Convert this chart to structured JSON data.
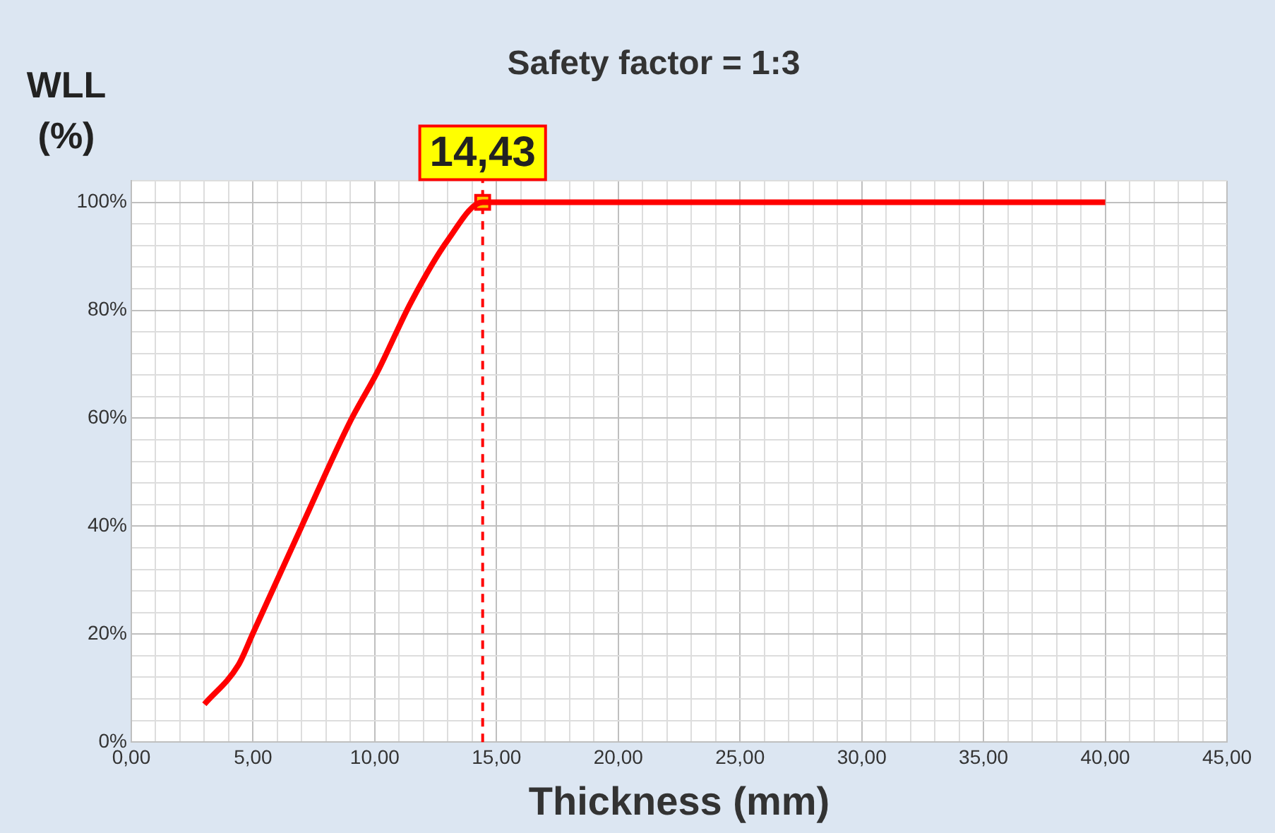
{
  "chart_data": {
    "type": "line",
    "title": "Safety factor = 1:3",
    "xlabel": "Thickness (mm)",
    "ylabel": "WLL (%)",
    "series": [
      {
        "color": "#ff0000",
        "x": [
          3,
          4.4,
          5,
          7,
          9,
          10.1,
          11.5,
          13,
          14.43,
          40
        ],
        "values": [
          7,
          14.3,
          20.2,
          40,
          59.5,
          68.5,
          81.6,
          93,
          100,
          100
        ],
        "marker": "none",
        "line_style": "solid"
      },
      {
        "type": "scatter",
        "color": "#ffc000",
        "x": [
          14.43
        ],
        "values": [
          100
        ],
        "marker": "square"
      }
    ],
    "xlim": [
      0,
      45
    ],
    "xticks": [
      {
        "value": 0,
        "label": "0,00"
      },
      {
        "value": 1,
        "label": null
      },
      {
        "value": 2,
        "label": null
      },
      {
        "value": 3,
        "label": null
      },
      {
        "value": 4,
        "label": null
      },
      {
        "value": 5,
        "label": "5,00"
      },
      {
        "value": 6,
        "label": null
      },
      {
        "value": 7,
        "label": null
      },
      {
        "value": 8,
        "label": null
      },
      {
        "value": 9,
        "label": null
      },
      {
        "value": 10,
        "label": "10,00"
      },
      {
        "value": 11,
        "label": null
      },
      {
        "value": 12,
        "label": null
      },
      {
        "value": 13,
        "label": null
      },
      {
        "value": 14,
        "label": null
      },
      {
        "value": 15,
        "label": "15,00"
      },
      {
        "value": 16,
        "label": null
      },
      {
        "value": 17,
        "label": null
      },
      {
        "value": 18,
        "label": null
      },
      {
        "value": 19,
        "label": null
      },
      {
        "value": 20,
        "label": "20,00"
      },
      {
        "value": 21,
        "label": null
      },
      {
        "value": 22,
        "label": null
      },
      {
        "value": 23,
        "label": null
      },
      {
        "value": 24,
        "label": null
      },
      {
        "value": 25,
        "label": "25,00"
      },
      {
        "value": 26,
        "label": null
      },
      {
        "value": 27,
        "label": null
      },
      {
        "value": 28,
        "label": null
      },
      {
        "value": 29,
        "label": null
      },
      {
        "value": 30,
        "label": "30,00"
      },
      {
        "value": 31,
        "label": null
      },
      {
        "value": 32,
        "label": null
      },
      {
        "value": 33,
        "label": null
      },
      {
        "value": 34,
        "label": null
      },
      {
        "value": 35,
        "label": "35,00"
      },
      {
        "value": 36,
        "label": null
      },
      {
        "value": 37,
        "label": null
      },
      {
        "value": 38,
        "label": null
      },
      {
        "value": 39,
        "label": null
      },
      {
        "value": 40,
        "label": "40,00"
      },
      {
        "value": 41,
        "label": null
      },
      {
        "value": 42,
        "label": null
      },
      {
        "value": 43,
        "label": null
      },
      {
        "value": 44,
        "label": null
      },
      {
        "value": 45,
        "label": "45,00"
      }
    ],
    "ylim": [
      0,
      104
    ],
    "yticks": [
      {
        "value": 0,
        "label": "0%"
      },
      {
        "value": 4,
        "label": null
      },
      {
        "value": 8,
        "label": null
      },
      {
        "value": 12,
        "label": null
      },
      {
        "value": 16,
        "label": null
      },
      {
        "value": 20,
        "label": "20%"
      },
      {
        "value": 24,
        "label": null
      },
      {
        "value": 28,
        "label": null
      },
      {
        "value": 32,
        "label": null
      },
      {
        "value": 36,
        "label": null
      },
      {
        "value": 40,
        "label": "40%"
      },
      {
        "value": 44,
        "label": null
      },
      {
        "value": 48,
        "label": null
      },
      {
        "value": 52,
        "label": null
      },
      {
        "value": 56,
        "label": null
      },
      {
        "value": 60,
        "label": "60%"
      },
      {
        "value": 64,
        "label": null
      },
      {
        "value": 68,
        "label": null
      },
      {
        "value": 72,
        "label": null
      },
      {
        "value": 76,
        "label": null
      },
      {
        "value": 80,
        "label": "80%"
      },
      {
        "value": 84,
        "label": null
      },
      {
        "value": 88,
        "label": null
      },
      {
        "value": 92,
        "label": null
      },
      {
        "value": 96,
        "label": null
      },
      {
        "value": 100,
        "label": "100%"
      },
      {
        "value": 104,
        "label": null
      }
    ],
    "grid": true,
    "legend": false,
    "ref_lines": [
      {
        "axis": "x",
        "value": 14.43,
        "color": "#ff0000",
        "line_style": "dashed"
      }
    ],
    "annotations": [
      {
        "text": "14,43",
        "x": 14.43,
        "y": 100
      }
    ]
  }
}
